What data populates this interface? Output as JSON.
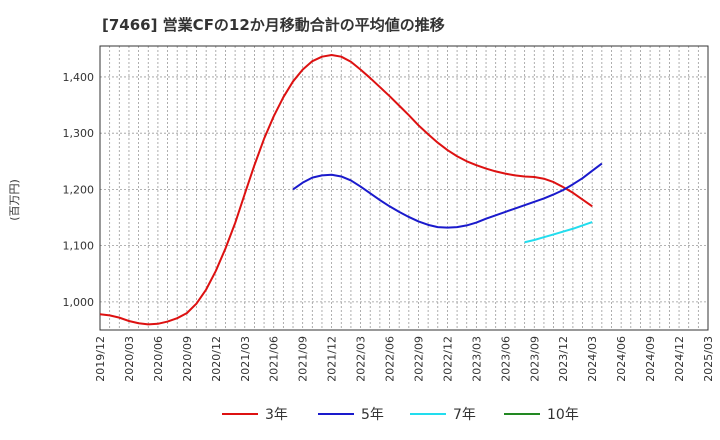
{
  "chart_data": {
    "type": "line",
    "title": "[7466]  営業CFの12か月移動合計の平均値の推移",
    "ylabel": "(百万円)",
    "xlabel": "",
    "ylim": [
      950,
      1455
    ],
    "yticks": [
      1000,
      1100,
      1200,
      1300,
      1400
    ],
    "ytick_labels": [
      "1,000",
      "1,100",
      "1,200",
      "1,300",
      "1,400"
    ],
    "xticks": [
      "2019/12",
      "2020/03",
      "2020/06",
      "2020/09",
      "2020/12",
      "2021/03",
      "2021/06",
      "2021/09",
      "2021/12",
      "2022/03",
      "2022/06",
      "2022/09",
      "2022/12",
      "2023/03",
      "2023/06",
      "2023/09",
      "2023/12",
      "2024/03",
      "2024/06",
      "2024/09",
      "2024/12",
      "2025/03"
    ],
    "grid": true,
    "legend_position": "bottom",
    "series": [
      {
        "name": "3年",
        "color": "#dd1111",
        "points": [
          [
            "2019/12",
            978
          ],
          [
            "2020/01",
            976
          ],
          [
            "2020/02",
            972
          ],
          [
            "2020/03",
            966
          ],
          [
            "2020/04",
            962
          ],
          [
            "2020/05",
            960
          ],
          [
            "2020/06",
            961
          ],
          [
            "2020/07",
            965
          ],
          [
            "2020/08",
            971
          ],
          [
            "2020/09",
            980
          ],
          [
            "2020/10",
            997
          ],
          [
            "2020/11",
            1022
          ],
          [
            "2020/12",
            1055
          ],
          [
            "2021/01",
            1095
          ],
          [
            "2021/02",
            1140
          ],
          [
            "2021/03",
            1192
          ],
          [
            "2021/04",
            1243
          ],
          [
            "2021/05",
            1290
          ],
          [
            "2021/06",
            1330
          ],
          [
            "2021/07",
            1364
          ],
          [
            "2021/08",
            1392
          ],
          [
            "2021/09",
            1413
          ],
          [
            "2021/10",
            1428
          ],
          [
            "2021/11",
            1436
          ],
          [
            "2021/12",
            1439
          ],
          [
            "2022/01",
            1436
          ],
          [
            "2022/02",
            1427
          ],
          [
            "2022/03",
            1413
          ],
          [
            "2022/04",
            1398
          ],
          [
            "2022/05",
            1382
          ],
          [
            "2022/06",
            1366
          ],
          [
            "2022/07",
            1349
          ],
          [
            "2022/08",
            1332
          ],
          [
            "2022/09",
            1314
          ],
          [
            "2022/10",
            1298
          ],
          [
            "2022/11",
            1283
          ],
          [
            "2022/12",
            1270
          ],
          [
            "2022/13",
            1259
          ],
          [
            "2023/02",
            1250
          ],
          [
            "2023/03",
            1243
          ],
          [
            "2023/04",
            1237
          ],
          [
            "2023/05",
            1232
          ],
          [
            "2023/06",
            1228
          ],
          [
            "2023/07",
            1225
          ],
          [
            "2023/08",
            1223
          ],
          [
            "2023/09",
            1222
          ],
          [
            "2023/10",
            1219
          ],
          [
            "2023/11",
            1213
          ],
          [
            "2023/12",
            1204
          ],
          [
            "2024/01",
            1194
          ],
          [
            "2024/02",
            1182
          ],
          [
            "2024/03",
            1170
          ]
        ]
      },
      {
        "name": "5年",
        "color": "#1a1acc",
        "points": [
          [
            "2021/08",
            1200
          ],
          [
            "2021/09",
            1212
          ],
          [
            "2021/10",
            1221
          ],
          [
            "2021/11",
            1225
          ],
          [
            "2021/12",
            1226
          ],
          [
            "2022/01",
            1223
          ],
          [
            "2022/02",
            1216
          ],
          [
            "2022/03",
            1205
          ],
          [
            "2022/04",
            1193
          ],
          [
            "2022/05",
            1181
          ],
          [
            "2022/06",
            1170
          ],
          [
            "2022/07",
            1160
          ],
          [
            "2022/08",
            1151
          ],
          [
            "2022/09",
            1143
          ],
          [
            "2022/10",
            1137
          ],
          [
            "2022/11",
            1133
          ],
          [
            "2022/12",
            1132
          ],
          [
            "2023/01",
            1133
          ],
          [
            "2023/02",
            1136
          ],
          [
            "2023/03",
            1141
          ],
          [
            "2023/04",
            1148
          ],
          [
            "2023/05",
            1154
          ],
          [
            "2023/06",
            1160
          ],
          [
            "2023/07",
            1166
          ],
          [
            "2023/08",
            1172
          ],
          [
            "2023/09",
            1178
          ],
          [
            "2023/10",
            1184
          ],
          [
            "2023/11",
            1191
          ],
          [
            "2023/12",
            1199
          ],
          [
            "2024/01",
            1209
          ],
          [
            "2024/02",
            1220
          ],
          [
            "2024/03",
            1233
          ],
          [
            "2024/04",
            1246
          ]
        ]
      },
      {
        "name": "7年",
        "color": "#22ddee",
        "points": [
          [
            "2023/08",
            1106
          ],
          [
            "2023/09",
            1110
          ],
          [
            "2023/10",
            1115
          ],
          [
            "2023/11",
            1120
          ],
          [
            "2023/12",
            1125
          ],
          [
            "2024/01",
            1130
          ],
          [
            "2024/02",
            1136
          ],
          [
            "2024/03",
            1142
          ]
        ]
      },
      {
        "name": "10年",
        "color": "#228822",
        "points": []
      }
    ]
  }
}
